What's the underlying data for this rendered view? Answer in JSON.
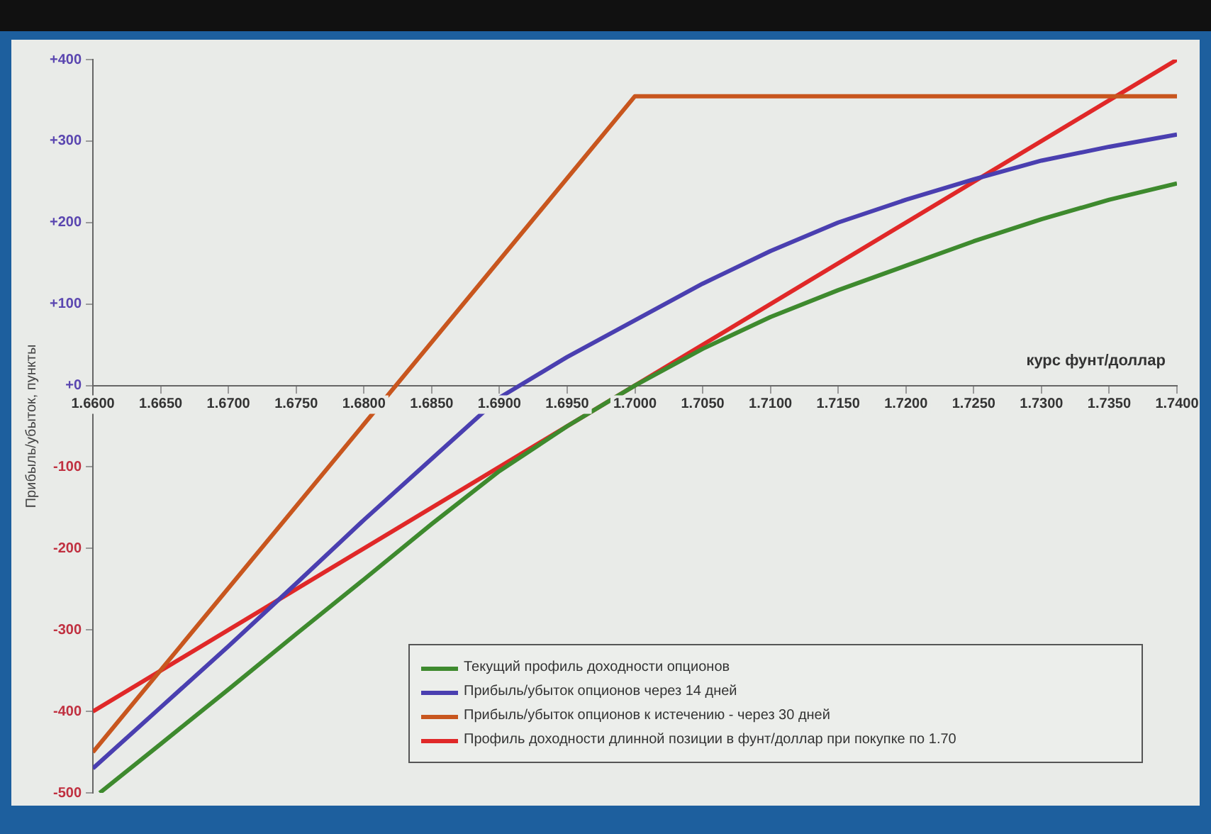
{
  "chart_data": {
    "type": "line",
    "xlabel": "курс фунт/доллар",
    "ylabel": "Прибыль/убыток, пункты",
    "xlim": [
      1.66,
      1.74
    ],
    "xticks": [
      {
        "value": 1.66,
        "label": "1.6600"
      },
      {
        "value": 1.665,
        "label": "1.6650"
      },
      {
        "value": 1.67,
        "label": "1.6700"
      },
      {
        "value": 1.675,
        "label": "1.6750"
      },
      {
        "value": 1.68,
        "label": "1.6800"
      },
      {
        "value": 1.685,
        "label": "1.6850"
      },
      {
        "value": 1.69,
        "label": "1.6900"
      },
      {
        "value": 1.695,
        "label": "1.6950"
      },
      {
        "value": 1.7,
        "label": "1.7000"
      },
      {
        "value": 1.705,
        "label": "1.7050"
      },
      {
        "value": 1.71,
        "label": "1.7100"
      },
      {
        "value": 1.715,
        "label": "1.7150"
      },
      {
        "value": 1.72,
        "label": "1.7200"
      },
      {
        "value": 1.725,
        "label": "1.7250"
      },
      {
        "value": 1.73,
        "label": "1.7300"
      },
      {
        "value": 1.735,
        "label": "1.7350"
      },
      {
        "value": 1.74,
        "label": "1.7400"
      }
    ],
    "ylim": [
      -500,
      400
    ],
    "yticks": [
      {
        "value": -500,
        "label": "-500"
      },
      {
        "value": -400,
        "label": "-400"
      },
      {
        "value": -300,
        "label": "-300"
      },
      {
        "value": -200,
        "label": "-200"
      },
      {
        "value": -100,
        "label": "-100"
      },
      {
        "value": 0,
        "label": "+0"
      },
      {
        "value": 100,
        "label": "+100"
      },
      {
        "value": 200,
        "label": "+200"
      },
      {
        "value": 300,
        "label": "+300"
      },
      {
        "value": 400,
        "label": "+400"
      }
    ],
    "grid": false,
    "legend": "bottom right",
    "marker": "none",
    "line_style": "solid",
    "series": [
      {
        "name": "Текущий профиль доходности опционов",
        "color": "#3e8a2e",
        "x": [
          1.6605,
          1.665,
          1.67,
          1.675,
          1.68,
          1.685,
          1.69,
          1.695,
          1.7,
          1.705,
          1.71,
          1.715,
          1.72,
          1.725,
          1.73,
          1.735,
          1.74
        ],
        "values": [
          -500,
          -440,
          -373,
          -305,
          -238,
          -170,
          -105,
          -50,
          0,
          45,
          84,
          117,
          147,
          177,
          204,
          228,
          248
        ]
      },
      {
        "name": "Прибыль/убыток опционов через 14 дней",
        "color": "#4a3fb0",
        "x": [
          1.66,
          1.665,
          1.67,
          1.675,
          1.68,
          1.685,
          1.69,
          1.695,
          1.7,
          1.705,
          1.71,
          1.715,
          1.72,
          1.725,
          1.73,
          1.735,
          1.74
        ],
        "values": [
          -470,
          -395,
          -320,
          -243,
          -165,
          -90,
          -15,
          35,
          80,
          125,
          165,
          200,
          228,
          253,
          276,
          293,
          308
        ]
      },
      {
        "name": "Прибыль/убыток опционов к истечению - через 30 дней",
        "color": "#c8561e",
        "x": [
          1.66,
          1.7,
          1.74
        ],
        "values": [
          -450,
          355,
          355
        ]
      },
      {
        "name": "Профиль доходности длинной позиции в фунт/доллар при покупке по 1.70",
        "color": "#e02828",
        "x": [
          1.66,
          1.74
        ],
        "values": [
          -400,
          400
        ]
      }
    ]
  }
}
